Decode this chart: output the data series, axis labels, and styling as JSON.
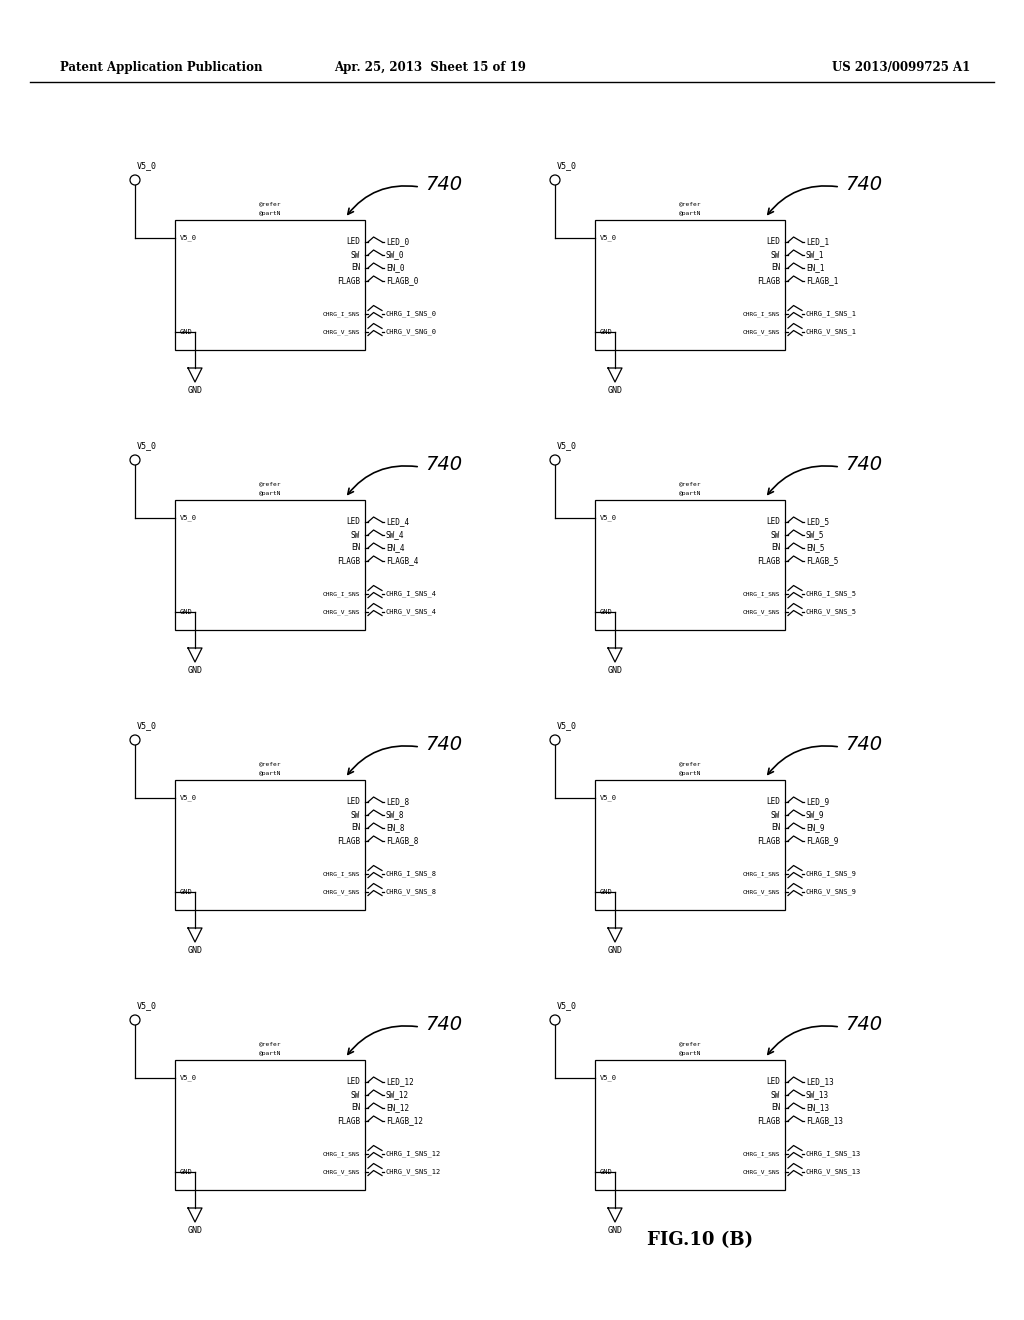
{
  "title_left": "Patent Application Publication",
  "title_mid": "Apr. 25, 2013  Sheet 15 of 19",
  "title_right": "US 2013/0099725 A1",
  "fig_label": "FIG.10 (B)",
  "ref_number": "740",
  "background_color": "#ffffff",
  "text_color": "#000000",
  "diagrams": [
    {
      "led_suffix": "LED_0",
      "sw_suffix": "SW_0",
      "en_suffix": "EN_0",
      "flagb_suffix": "FLAGB_0",
      "charg_i_suffix": "CHRG_I_SNS_0",
      "charg_v_suffix": "CHRG_V_SNG_0",
      "col": 0,
      "row": 0
    },
    {
      "led_suffix": "LED_1",
      "sw_suffix": "SW_1",
      "en_suffix": "EN_1",
      "flagb_suffix": "FLAGB_1",
      "charg_i_suffix": "CHRG_I_SNS_1",
      "charg_v_suffix": "CHRG_V_SNS_1",
      "col": 1,
      "row": 0
    },
    {
      "led_suffix": "LED_4",
      "sw_suffix": "SW_4",
      "en_suffix": "EN_4",
      "flagb_suffix": "FLAGB_4",
      "charg_i_suffix": "CHRG_I_SNS_4",
      "charg_v_suffix": "CHRG_V_SNS_4",
      "col": 0,
      "row": 1
    },
    {
      "led_suffix": "LED_5",
      "sw_suffix": "SW_5",
      "en_suffix": "EN_5",
      "flagb_suffix": "FLAGB_5",
      "charg_i_suffix": "CHRG_I_SNS_5",
      "charg_v_suffix": "CHRG_V_SNS_5",
      "col": 1,
      "row": 1
    },
    {
      "led_suffix": "LED_8",
      "sw_suffix": "SW_8",
      "en_suffix": "EN_8",
      "flagb_suffix": "FLAGB_8",
      "charg_i_suffix": "CHRG_I_SNS_8",
      "charg_v_suffix": "CHRG_V_SNS_8",
      "col": 0,
      "row": 2
    },
    {
      "led_suffix": "LED_9",
      "sw_suffix": "SW_9",
      "en_suffix": "EN_9",
      "flagb_suffix": "FLAGB_9",
      "charg_i_suffix": "CHRG_I_SNS_9",
      "charg_v_suffix": "CHRG_V_SNS_9",
      "col": 1,
      "row": 2
    },
    {
      "led_suffix": "LED_12",
      "sw_suffix": "SW_12",
      "en_suffix": "EN_12",
      "flagb_suffix": "FLAGB_12",
      "charg_i_suffix": "CHRG_I_SNS_12",
      "charg_v_suffix": "CHRG_V_SNS_12",
      "col": 0,
      "row": 3
    },
    {
      "led_suffix": "LED_13",
      "sw_suffix": "SW_13",
      "en_suffix": "EN_13",
      "flagb_suffix": "FLAGB_13",
      "charg_i_suffix": "CHRG_I_SNS_13",
      "charg_v_suffix": "CHRG_V_SNS_13",
      "col": 1,
      "row": 3
    }
  ]
}
